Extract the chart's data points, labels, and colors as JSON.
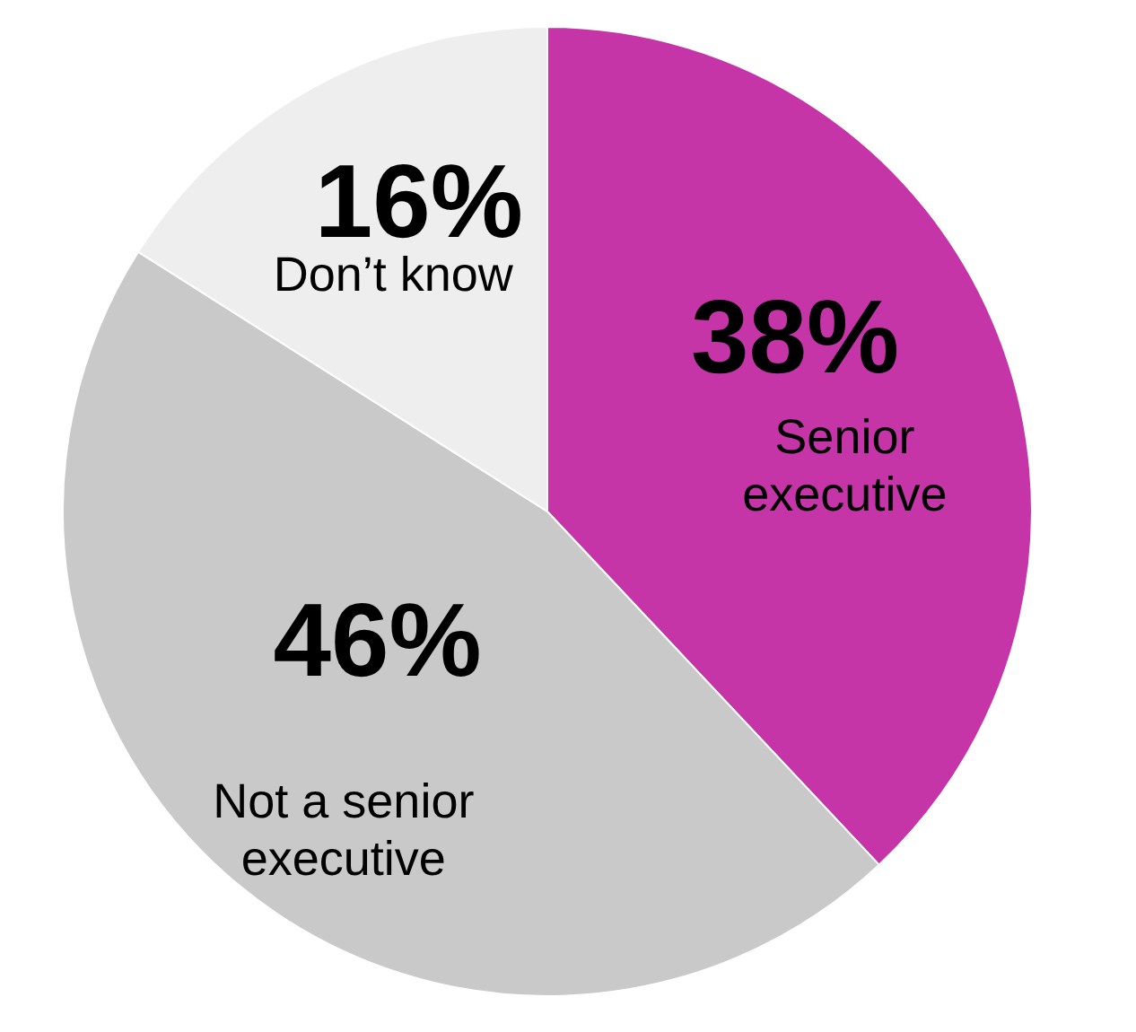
{
  "chart_data": {
    "type": "pie",
    "categories": [
      "Senior executive",
      "Not a senior executive",
      "Don’t know"
    ],
    "values": [
      38,
      46,
      16
    ],
    "colors": [
      "#c535a8",
      "#c9c9c9",
      "#eeeeee"
    ],
    "value_labels": [
      "38%",
      "46%",
      "16%"
    ],
    "legend": false
  }
}
